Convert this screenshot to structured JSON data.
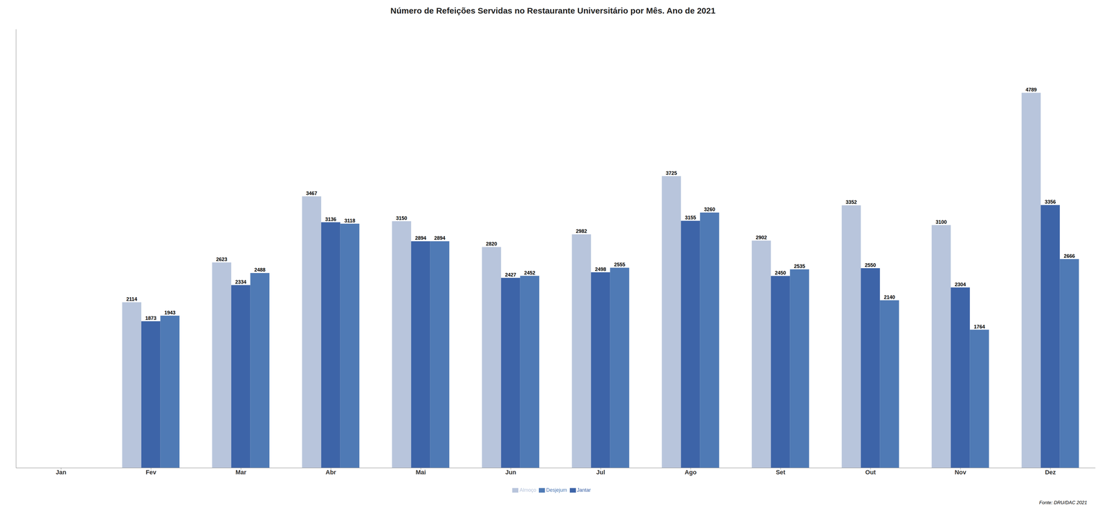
{
  "chart_data": {
    "type": "bar",
    "title": "Número de Refeições Servidas no Restaurante Universitário por Mês. Ano de 2021",
    "categories": [
      "Jan",
      "Fev",
      "Mar",
      "Abr",
      "Mai",
      "Jun",
      "Jul",
      "Ago",
      "Set",
      "Out",
      "Nov",
      "Dez"
    ],
    "series": [
      {
        "name": "Almoço",
        "color": "#b8c5dc",
        "values": [
          0,
          2114,
          2623,
          3467,
          3150,
          2820,
          2982,
          3725,
          2902,
          3352,
          3100,
          4789
        ]
      },
      {
        "name": "Jantar",
        "color": "#3d64a8",
        "values": [
          0,
          1873,
          2334,
          3136,
          2894,
          2427,
          2498,
          3155,
          2450,
          2550,
          2304,
          3356
        ]
      },
      {
        "name": "Desjejum",
        "color": "#4f7ab5",
        "values": [
          0,
          1943,
          2488,
          3118,
          2894,
          2452,
          2555,
          3260,
          2535,
          2140,
          1764,
          2666
        ]
      }
    ],
    "ylim": [
      0,
      5600
    ],
    "grid": false,
    "legend": "bottom",
    "data_labels": true,
    "tick_labels": "x",
    "annotations": [
      "Fonte: DRU/DAC 2021"
    ]
  }
}
